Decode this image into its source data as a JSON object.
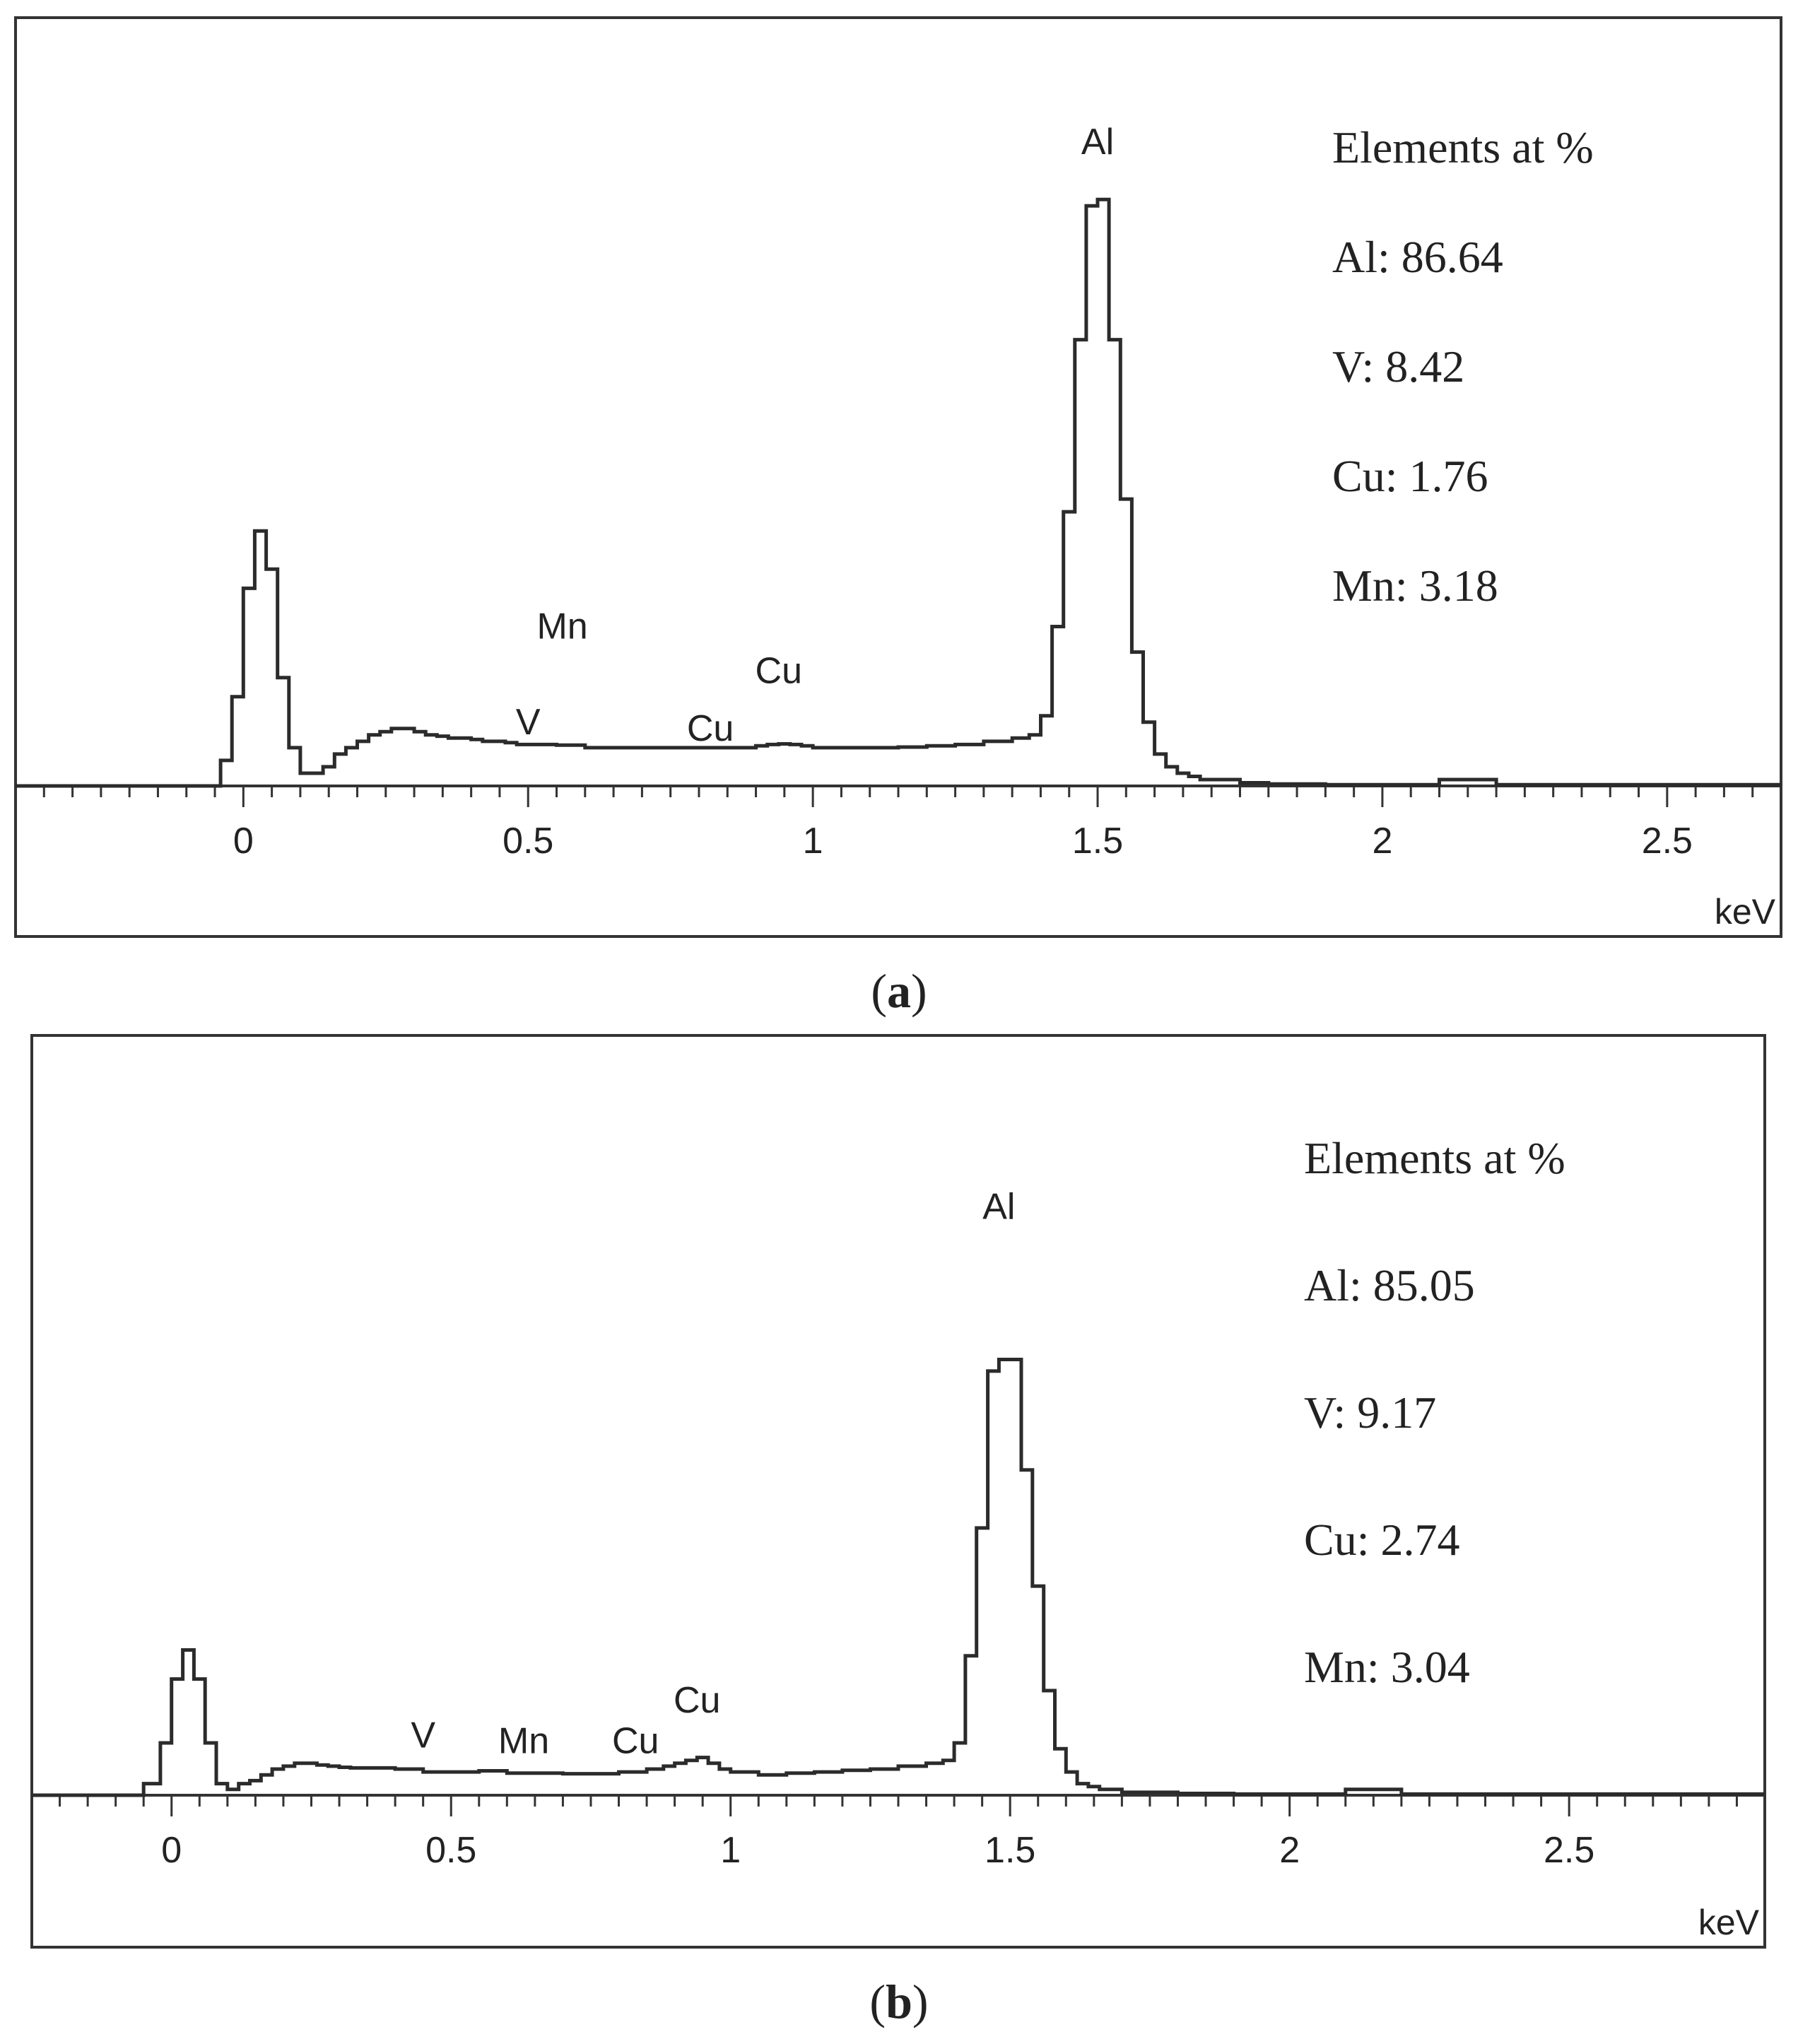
{
  "chart_data": [
    {
      "type": "line",
      "panel": "a",
      "caption_letter": "a",
      "xlabel": "keV",
      "ylabel": "",
      "title": "",
      "xlim": [
        -0.4,
        2.7
      ],
      "ylim": [
        0,
        1
      ],
      "x_ticks": [
        0,
        0.5,
        1,
        1.5,
        2,
        2.5
      ],
      "x_tick_labels": [
        "0",
        "0.5",
        "1",
        "1.5",
        "2",
        "2.5"
      ],
      "legend_title": "Elements at %",
      "elements": [
        {
          "label": "Al: 86.64",
          "element": "Al",
          "value": 86.64
        },
        {
          "label": "V: 8.42",
          "element": "V",
          "value": 8.42
        },
        {
          "label": "Cu: 1.76",
          "element": "Cu",
          "value": 1.76
        },
        {
          "label": "Mn: 3.18",
          "element": "Mn",
          "value": 3.18
        }
      ],
      "peak_labels": [
        {
          "text": "Al",
          "x": 1.5,
          "y": 0.98
        },
        {
          "text": "Mn",
          "x": 0.56,
          "y": 0.22
        },
        {
          "text": "V",
          "x": 0.5,
          "y": 0.07
        },
        {
          "text": "Cu",
          "x": 0.82,
          "y": 0.06
        },
        {
          "text": "Cu",
          "x": 0.94,
          "y": 0.15
        }
      ],
      "spectrum": {
        "x": [
          -0.4,
          -0.06,
          -0.04,
          -0.02,
          0.0,
          0.02,
          0.04,
          0.06,
          0.08,
          0.1,
          0.12,
          0.14,
          0.16,
          0.18,
          0.2,
          0.22,
          0.24,
          0.26,
          0.28,
          0.3,
          0.32,
          0.34,
          0.36,
          0.38,
          0.4,
          0.42,
          0.44,
          0.46,
          0.48,
          0.5,
          0.55,
          0.6,
          0.65,
          0.7,
          0.75,
          0.8,
          0.85,
          0.9,
          0.92,
          0.94,
          0.96,
          0.98,
          1.0,
          1.05,
          1.1,
          1.15,
          1.2,
          1.25,
          1.3,
          1.35,
          1.38,
          1.4,
          1.42,
          1.44,
          1.46,
          1.48,
          1.5,
          1.52,
          1.54,
          1.56,
          1.58,
          1.6,
          1.62,
          1.64,
          1.66,
          1.68,
          1.7,
          1.75,
          1.8,
          1.9,
          2.0,
          2.1,
          2.12,
          2.14,
          2.16,
          2.18,
          2.2,
          2.3,
          2.4,
          2.5,
          2.6,
          2.7
        ],
        "y": [
          0,
          0,
          0.04,
          0.14,
          0.31,
          0.4,
          0.34,
          0.17,
          0.06,
          0.02,
          0.02,
          0.03,
          0.05,
          0.06,
          0.07,
          0.08,
          0.085,
          0.09,
          0.09,
          0.085,
          0.08,
          0.078,
          0.075,
          0.075,
          0.073,
          0.07,
          0.07,
          0.068,
          0.065,
          0.065,
          0.064,
          0.06,
          0.06,
          0.06,
          0.06,
          0.06,
          0.06,
          0.063,
          0.065,
          0.066,
          0.065,
          0.063,
          0.06,
          0.06,
          0.06,
          0.061,
          0.063,
          0.065,
          0.07,
          0.075,
          0.08,
          0.11,
          0.25,
          0.43,
          0.7,
          0.91,
          0.92,
          0.7,
          0.45,
          0.21,
          0.1,
          0.05,
          0.03,
          0.02,
          0.015,
          0.01,
          0.01,
          0.005,
          0.003,
          0.002,
          0.002,
          0.01,
          0.01,
          0.01,
          0.01,
          0.01,
          0.002,
          0.002,
          0.002,
          0.002,
          0.002,
          0.002
        ]
      }
    },
    {
      "type": "line",
      "panel": "b",
      "caption_letter": "b",
      "xlabel": "keV",
      "ylabel": "",
      "title": "",
      "xlim": [
        -0.25,
        2.85
      ],
      "ylim": [
        0,
        1
      ],
      "x_ticks": [
        0,
        0.5,
        1,
        1.5,
        2,
        2.5
      ],
      "x_tick_labels": [
        "0",
        "0.5",
        "1",
        "1.5",
        "2",
        "2.5"
      ],
      "legend_title": "Elements at %",
      "elements": [
        {
          "label": "Al: 85.05",
          "element": "Al",
          "value": 85.05
        },
        {
          "label": "V: 9.17",
          "element": "V",
          "value": 9.17
        },
        {
          "label": "Cu: 2.74",
          "element": "Cu",
          "value": 2.74
        },
        {
          "label": "Mn: 3.04",
          "element": "Mn",
          "value": 3.04
        }
      ],
      "peak_labels": [
        {
          "text": "Al",
          "x": 1.48,
          "y": 0.98
        },
        {
          "text": "V",
          "x": 0.45,
          "y": 0.07
        },
        {
          "text": "Mn",
          "x": 0.63,
          "y": 0.06
        },
        {
          "text": "Cu",
          "x": 0.83,
          "y": 0.06
        },
        {
          "text": "Cu",
          "x": 0.94,
          "y": 0.13
        }
      ],
      "spectrum": {
        "x": [
          -0.25,
          -0.05,
          -0.02,
          0.0,
          0.02,
          0.04,
          0.06,
          0.08,
          0.1,
          0.12,
          0.14,
          0.16,
          0.18,
          0.2,
          0.22,
          0.24,
          0.26,
          0.28,
          0.3,
          0.32,
          0.35,
          0.4,
          0.45,
          0.5,
          0.55,
          0.6,
          0.65,
          0.7,
          0.75,
          0.8,
          0.85,
          0.88,
          0.9,
          0.92,
          0.94,
          0.96,
          0.98,
          1.0,
          1.05,
          1.1,
          1.15,
          1.2,
          1.25,
          1.3,
          1.35,
          1.38,
          1.4,
          1.42,
          1.44,
          1.46,
          1.48,
          1.5,
          1.52,
          1.54,
          1.56,
          1.58,
          1.6,
          1.62,
          1.64,
          1.66,
          1.7,
          1.8,
          1.9,
          2.0,
          2.1,
          2.15,
          2.2,
          2.3,
          2.4,
          2.5,
          2.6,
          2.7,
          2.85
        ],
        "y": [
          0,
          0.02,
          0.09,
          0.2,
          0.25,
          0.2,
          0.09,
          0.02,
          0.01,
          0.02,
          0.025,
          0.035,
          0.045,
          0.05,
          0.055,
          0.055,
          0.052,
          0.05,
          0.048,
          0.047,
          0.047,
          0.045,
          0.04,
          0.04,
          0.042,
          0.038,
          0.038,
          0.037,
          0.037,
          0.04,
          0.045,
          0.05,
          0.055,
          0.06,
          0.065,
          0.055,
          0.045,
          0.04,
          0.035,
          0.038,
          0.04,
          0.043,
          0.045,
          0.05,
          0.055,
          0.06,
          0.09,
          0.24,
          0.46,
          0.73,
          0.75,
          0.75,
          0.56,
          0.36,
          0.18,
          0.08,
          0.04,
          0.02,
          0.015,
          0.01,
          0.005,
          0.003,
          0.002,
          0.002,
          0.01,
          0.01,
          0.002,
          0.002,
          0.002,
          0.002,
          0.002,
          0.002,
          0.002
        ]
      }
    }
  ]
}
